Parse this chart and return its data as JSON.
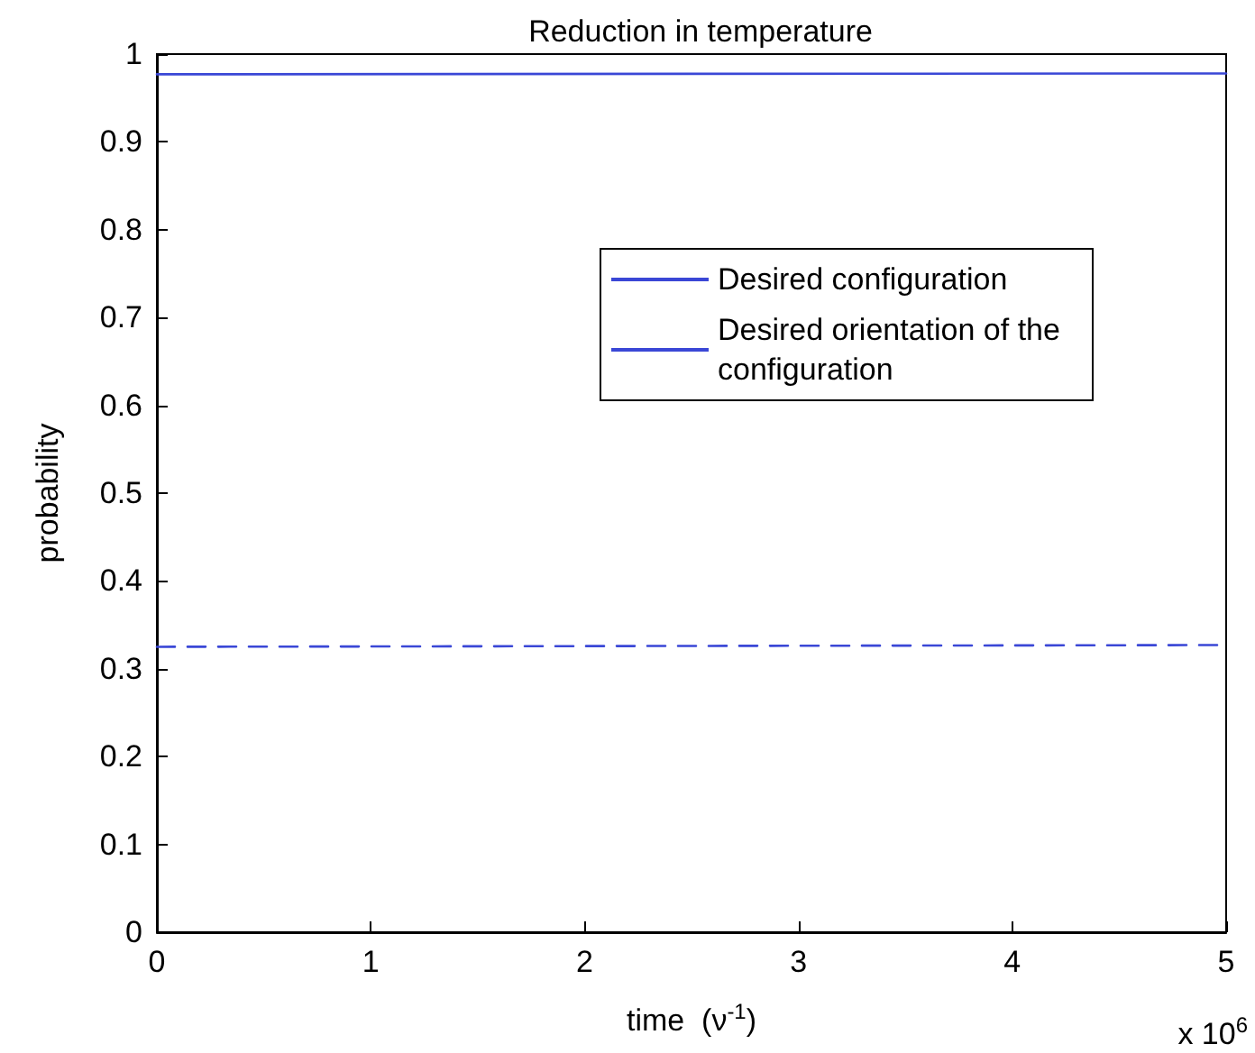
{
  "chart_data": {
    "type": "line",
    "title": "Reduction in temperature",
    "xlabel": "time  (ν$^{-1}$)",
    "ylabel": "probability",
    "annotations": [
      "x 10$^{6}$"
    ],
    "x": [
      0,
      5
    ],
    "series": [
      {
        "name": "Desired configuration",
        "color": "#3a47d6",
        "values": [
          0.977,
          0.978
        ],
        "line_style": "solid"
      },
      {
        "name": "Desired orientation of the configuration",
        "color": "#3a47d6",
        "values": [
          0.325,
          0.327
        ],
        "line_style": "dashed"
      }
    ],
    "xlim": [
      0,
      5
    ],
    "xticks": [
      0,
      1,
      2,
      3,
      4,
      5
    ],
    "ylim": [
      0,
      1
    ],
    "yticks": [
      0,
      0.1,
      0.2,
      0.3,
      0.4,
      0.5,
      0.6,
      0.7,
      0.8,
      0.9,
      1
    ],
    "grid": false,
    "legend": "top right",
    "marker": "none"
  }
}
